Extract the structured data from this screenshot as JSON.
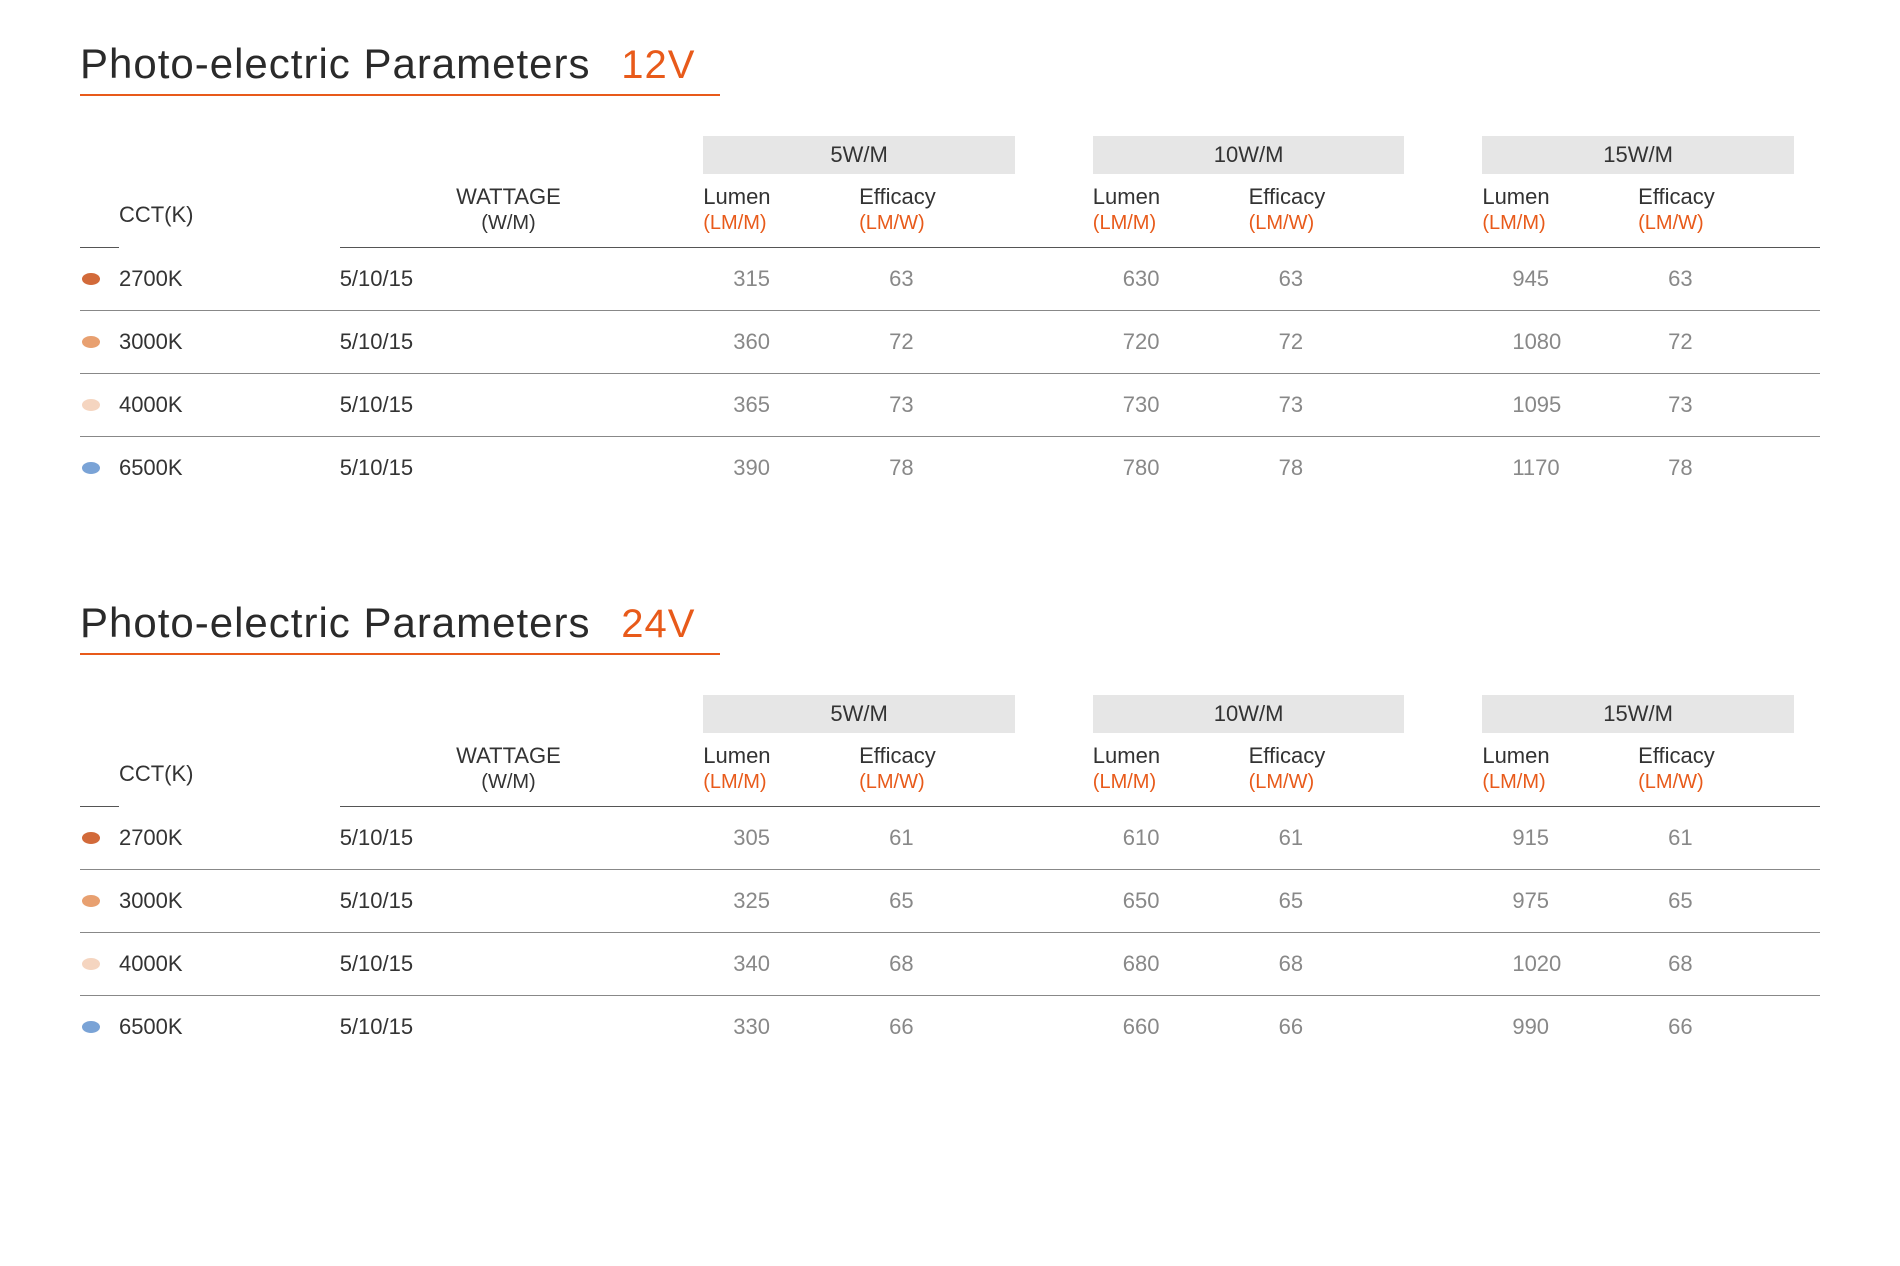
{
  "accent_color": "#e85a1a",
  "header_bg": "#e6e6e6",
  "text_color": "#333333",
  "muted_color": "#888888",
  "sections": [
    {
      "title": "Photo-electric Parameters",
      "voltage_label": "12V",
      "group_headers": [
        "5W/M",
        "10W/M",
        "15W/M"
      ],
      "col_cct": "CCT(K)",
      "col_wattage_top": "WATTAGE",
      "col_wattage_bot": "(W/M)",
      "sub_lumen": "Lumen",
      "sub_lumen_unit": "(LM/M)",
      "sub_eff": "Efficacy",
      "sub_eff_unit": "(LM/W)",
      "rows": [
        {
          "swatch": "#d26a3a",
          "cct": "2700K",
          "wattage": "5/10/15",
          "g1_lumen": "315",
          "g1_eff": "63",
          "g2_lumen": "630",
          "g2_eff": "63",
          "g3_lumen": "945",
          "g3_eff": "63"
        },
        {
          "swatch": "#e8a070",
          "cct": "3000K",
          "wattage": "5/10/15",
          "g1_lumen": "360",
          "g1_eff": "72",
          "g2_lumen": "720",
          "g2_eff": "72",
          "g3_lumen": "1080",
          "g3_eff": "72"
        },
        {
          "swatch": "#f5d5c0",
          "cct": "4000K",
          "wattage": "5/10/15",
          "g1_lumen": "365",
          "g1_eff": "73",
          "g2_lumen": "730",
          "g2_eff": "73",
          "g3_lumen": "1095",
          "g3_eff": "73"
        },
        {
          "swatch": "#7aa3d6",
          "cct": "6500K",
          "wattage": "5/10/15",
          "g1_lumen": "390",
          "g1_eff": "78",
          "g2_lumen": "780",
          "g2_eff": "78",
          "g3_lumen": "1170",
          "g3_eff": "78"
        }
      ]
    },
    {
      "title": "Photo-electric Parameters",
      "voltage_label": "24V",
      "group_headers": [
        "5W/M",
        "10W/M",
        "15W/M"
      ],
      "col_cct": "CCT(K)",
      "col_wattage_top": "WATTAGE",
      "col_wattage_bot": "(W/M)",
      "sub_lumen": "Lumen",
      "sub_lumen_unit": "(LM/M)",
      "sub_eff": "Efficacy",
      "sub_eff_unit": "(LM/W)",
      "rows": [
        {
          "swatch": "#d26a3a",
          "cct": "2700K",
          "wattage": "5/10/15",
          "g1_lumen": "305",
          "g1_eff": "61",
          "g2_lumen": "610",
          "g2_eff": "61",
          "g3_lumen": "915",
          "g3_eff": "61"
        },
        {
          "swatch": "#e8a070",
          "cct": "3000K",
          "wattage": "5/10/15",
          "g1_lumen": "325",
          "g1_eff": "65",
          "g2_lumen": "650",
          "g2_eff": "65",
          "g3_lumen": "975",
          "g3_eff": "65"
        },
        {
          "swatch": "#f5d5c0",
          "cct": "4000K",
          "wattage": "5/10/15",
          "g1_lumen": "340",
          "g1_eff": "68",
          "g2_lumen": "680",
          "g2_eff": "68",
          "g3_lumen": "1020",
          "g3_eff": "68"
        },
        {
          "swatch": "#7aa3d6",
          "cct": "6500K",
          "wattage": "5/10/15",
          "g1_lumen": "330",
          "g1_eff": "66",
          "g2_lumen": "660",
          "g2_eff": "66",
          "g3_lumen": "990",
          "g3_eff": "66"
        }
      ]
    }
  ]
}
